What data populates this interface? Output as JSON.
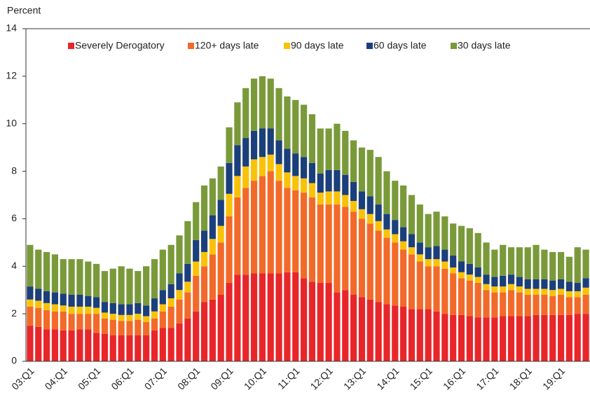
{
  "chart_data": {
    "type": "stacked-bar",
    "title": "Percent",
    "categories": [
      "03:Q1",
      null,
      null,
      null,
      "04:Q1",
      null,
      null,
      null,
      "05:Q1",
      null,
      null,
      null,
      "06:Q1",
      null,
      null,
      null,
      "07:Q1",
      null,
      null,
      null,
      "08:Q1",
      null,
      null,
      null,
      "09:Q1",
      null,
      null,
      null,
      "10:Q1",
      null,
      null,
      null,
      "11:Q1",
      null,
      null,
      null,
      "12:Q1",
      null,
      null,
      null,
      "13:Q1",
      null,
      null,
      null,
      "14:Q1",
      null,
      null,
      null,
      "15:Q1",
      null,
      null,
      null,
      "16:Q1",
      null,
      null,
      null,
      "17:Q1",
      null,
      null,
      null,
      "18:Q1",
      null,
      null,
      null,
      "19:Q1",
      null,
      null,
      null
    ],
    "series": [
      {
        "name": "Severely Derogatory",
        "color": "#e8262a",
        "values": [
          1.5,
          1.45,
          1.35,
          1.35,
          1.3,
          1.3,
          1.35,
          1.35,
          1.2,
          1.15,
          1.1,
          1.1,
          1.1,
          1.1,
          1.1,
          1.3,
          1.4,
          1.4,
          1.6,
          1.8,
          2.1,
          2.5,
          2.6,
          2.8,
          3.3,
          3.65,
          3.65,
          3.7,
          3.7,
          3.7,
          3.7,
          3.75,
          3.75,
          3.5,
          3.35,
          3.3,
          3.3,
          2.9,
          3.0,
          2.8,
          2.7,
          2.6,
          2.5,
          2.4,
          2.35,
          2.3,
          2.2,
          2.2,
          2.2,
          2.1,
          2.0,
          1.95,
          1.95,
          1.9,
          1.85,
          1.85,
          1.85,
          1.9,
          1.9,
          1.9,
          1.9,
          1.95,
          1.95,
          1.95,
          1.95,
          1.95,
          2.0,
          2.0
        ]
      },
      {
        "name": "120+ days late",
        "color": "#f26a2a",
        "values": [
          0.8,
          0.8,
          0.8,
          0.75,
          0.8,
          0.7,
          0.65,
          0.65,
          0.8,
          0.65,
          0.65,
          0.6,
          0.6,
          0.65,
          0.55,
          0.5,
          0.7,
          0.9,
          1.0,
          1.1,
          1.5,
          1.5,
          1.9,
          2.2,
          2.8,
          3.25,
          3.65,
          3.9,
          4.1,
          4.3,
          3.9,
          3.55,
          3.45,
          3.6,
          3.55,
          3.3,
          3.3,
          3.7,
          3.5,
          3.5,
          3.3,
          3.2,
          3.0,
          2.8,
          2.65,
          2.4,
          2.3,
          2.0,
          1.8,
          1.9,
          1.9,
          1.75,
          1.55,
          1.5,
          1.45,
          1.15,
          1.05,
          1.0,
          1.1,
          1.0,
          0.9,
          0.85,
          0.85,
          0.8,
          0.85,
          0.75,
          0.7,
          0.8
        ]
      },
      {
        "name": "90 days late",
        "color": "#f9c20a",
        "values": [
          0.3,
          0.3,
          0.3,
          0.3,
          0.25,
          0.3,
          0.3,
          0.3,
          0.25,
          0.25,
          0.25,
          0.25,
          0.25,
          0.25,
          0.25,
          0.3,
          0.3,
          0.35,
          0.4,
          0.45,
          0.6,
          0.6,
          0.65,
          0.7,
          0.95,
          0.9,
          0.9,
          0.9,
          0.8,
          0.7,
          0.7,
          0.65,
          0.6,
          0.6,
          0.6,
          0.5,
          0.55,
          0.55,
          0.5,
          0.45,
          0.4,
          0.4,
          0.4,
          0.35,
          0.35,
          0.35,
          0.3,
          0.3,
          0.3,
          0.3,
          0.3,
          0.25,
          0.25,
          0.25,
          0.25,
          0.25,
          0.25,
          0.25,
          0.25,
          0.25,
          0.25,
          0.25,
          0.25,
          0.25,
          0.25,
          0.25,
          0.25,
          0.3
        ]
      },
      {
        "name": "60 days late",
        "color": "#1b3f7a",
        "values": [
          0.55,
          0.5,
          0.5,
          0.5,
          0.5,
          0.5,
          0.5,
          0.45,
          0.45,
          0.45,
          0.45,
          0.45,
          0.45,
          0.45,
          0.45,
          0.55,
          0.6,
          0.6,
          0.7,
          0.75,
          0.9,
          0.9,
          1.0,
          1.1,
          1.3,
          1.3,
          1.2,
          1.2,
          1.2,
          1.1,
          1.0,
          1.0,
          0.95,
          0.9,
          0.85,
          0.8,
          0.9,
          0.9,
          0.85,
          0.8,
          0.75,
          0.75,
          0.7,
          0.65,
          0.6,
          0.6,
          0.55,
          0.5,
          0.5,
          0.55,
          0.5,
          0.5,
          0.45,
          0.45,
          0.4,
          0.4,
          0.4,
          0.45,
          0.4,
          0.4,
          0.4,
          0.4,
          0.4,
          0.4,
          0.4,
          0.4,
          0.35,
          0.4
        ]
      },
      {
        "name": "30 days late",
        "color": "#7a9a3a",
        "values": [
          1.75,
          1.65,
          1.65,
          1.6,
          1.45,
          1.5,
          1.5,
          1.45,
          1.4,
          1.3,
          1.45,
          1.6,
          1.5,
          1.35,
          1.65,
          1.65,
          1.7,
          1.65,
          1.6,
          1.8,
          1.6,
          1.9,
          1.55,
          1.4,
          1.5,
          1.8,
          2.1,
          2.2,
          2.2,
          2.1,
          2.2,
          2.2,
          2.25,
          2.2,
          2.05,
          1.9,
          1.75,
          1.95,
          1.85,
          1.75,
          1.85,
          1.95,
          2.0,
          1.8,
          1.65,
          1.75,
          1.65,
          1.6,
          1.4,
          1.45,
          1.4,
          1.35,
          1.5,
          1.5,
          1.45,
          1.35,
          1.15,
          1.3,
          1.15,
          1.25,
          1.35,
          1.45,
          1.25,
          1.2,
          1.15,
          1.05,
          1.5,
          1.2
        ]
      }
    ],
    "ylim": [
      0,
      14
    ],
    "yticks": [
      0,
      2,
      4,
      6,
      8,
      10,
      12,
      14
    ],
    "legend": "top-left"
  }
}
